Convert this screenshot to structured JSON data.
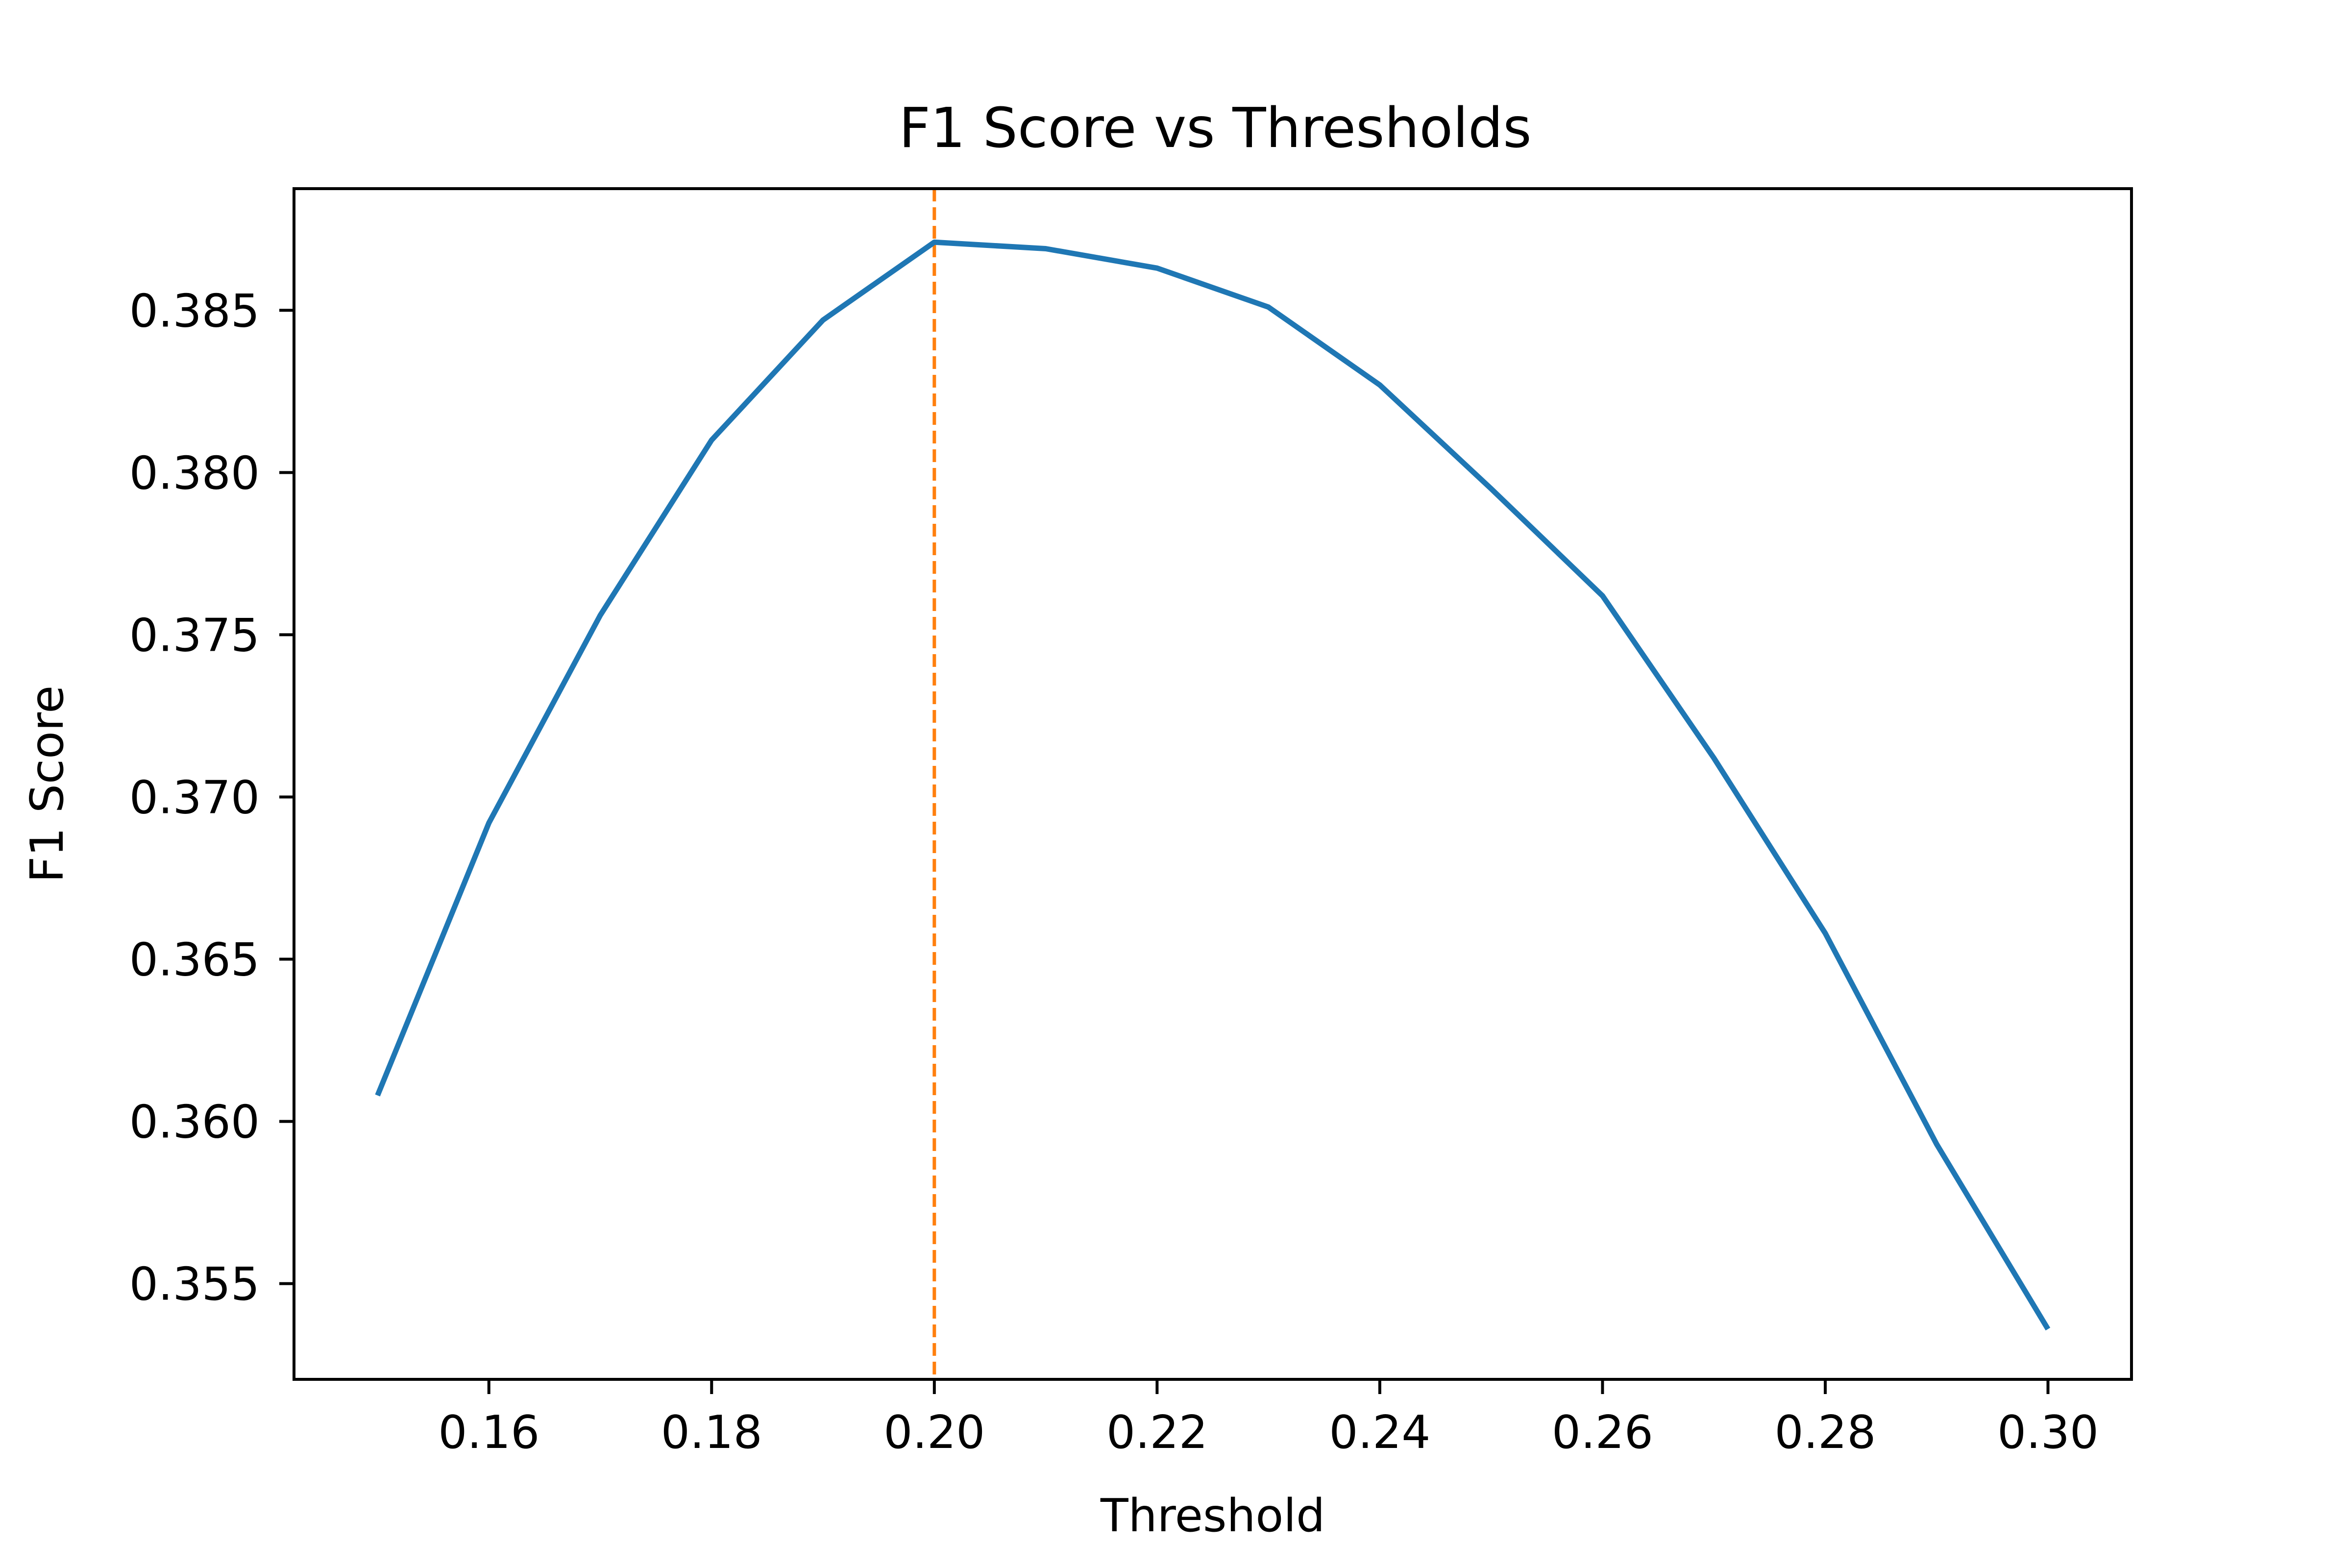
{
  "chart_data": {
    "type": "line",
    "title": "F1 Score vs Thresholds",
    "xlabel": "Threshold",
    "ylabel": "F1 Score",
    "xlim": [
      0.1425,
      0.3075
    ],
    "ylim": [
      0.35205,
      0.38875
    ],
    "grid": false,
    "x_ticks": [
      "0.16",
      "0.18",
      "0.20",
      "0.22",
      "0.24",
      "0.26",
      "0.28",
      "0.30"
    ],
    "x_tick_values": [
      0.16,
      0.18,
      0.2,
      0.22,
      0.24,
      0.26,
      0.28,
      0.3
    ],
    "y_ticks": [
      "0.355",
      "0.360",
      "0.365",
      "0.370",
      "0.375",
      "0.380",
      "0.385"
    ],
    "y_tick_values": [
      0.355,
      0.36,
      0.365,
      0.37,
      0.375,
      0.38,
      0.385
    ],
    "series": [
      {
        "color": "#1f77b4",
        "x": [
          0.15,
          0.16,
          0.17,
          0.18,
          0.19,
          0.2,
          0.21,
          0.22,
          0.23,
          0.24,
          0.25,
          0.26,
          0.27,
          0.28,
          0.29,
          0.3
        ],
        "y": [
          0.3608,
          0.3692,
          0.3756,
          0.381,
          0.3847,
          0.3871,
          0.3869,
          0.3863,
          0.3851,
          0.3827,
          0.3795,
          0.3762,
          0.3712,
          0.3658,
          0.3593,
          0.3536
        ]
      }
    ],
    "vlines": [
      {
        "x": 0.2,
        "color": "#ff7f0e",
        "style": "dashed"
      }
    ]
  }
}
